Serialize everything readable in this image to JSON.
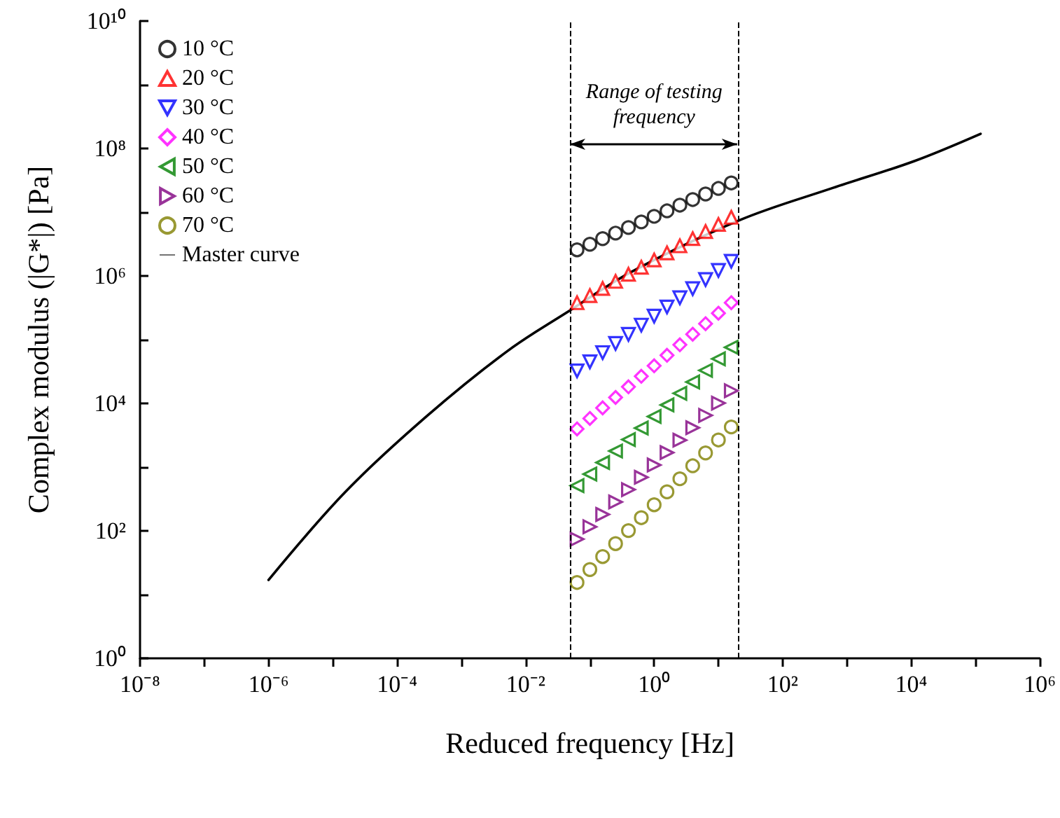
{
  "chart_data": {
    "type": "scatter",
    "xlabel": "Reduced frequency [Hz]",
    "ylabel": "Complex modulus (|G*|) [Pa]",
    "log": "xy",
    "grid": false,
    "legend": "top left",
    "xlim": [
      1e-08,
      1000000.0
    ],
    "ylim": [
      1,
      10000000000.0
    ],
    "xticks": [
      {
        "value": 1e-08,
        "label": "10⁻⁸"
      },
      {
        "value": 1e-07,
        "label": null
      },
      {
        "value": 1e-06,
        "label": "10⁻⁶"
      },
      {
        "value": 1e-05,
        "label": null
      },
      {
        "value": 0.0001,
        "label": "10⁻⁴"
      },
      {
        "value": 0.001,
        "label": null
      },
      {
        "value": 0.01,
        "label": "10⁻²"
      },
      {
        "value": 0.1,
        "label": null
      },
      {
        "value": 1,
        "label": "10⁰"
      },
      {
        "value": 10,
        "label": null
      },
      {
        "value": 100,
        "label": "10²"
      },
      {
        "value": 1000,
        "label": null
      },
      {
        "value": 10000.0,
        "label": "10⁴"
      },
      {
        "value": 100000.0,
        "label": null
      },
      {
        "value": 1000000.0,
        "label": "10⁶"
      }
    ],
    "yticks": [
      {
        "value": 1,
        "label": "10⁰"
      },
      {
        "value": 10,
        "label": null
      },
      {
        "value": 100,
        "label": "10²"
      },
      {
        "value": 1000,
        "label": null
      },
      {
        "value": 10000.0,
        "label": "10⁴"
      },
      {
        "value": 100000.0,
        "label": null
      },
      {
        "value": 1000000.0,
        "label": "10⁶"
      },
      {
        "value": 10000000.0,
        "label": null
      },
      {
        "value": 100000000.0,
        "label": "10⁸"
      },
      {
        "value": 1000000000.0,
        "label": null
      },
      {
        "value": 10000000000.0,
        "label": "10¹⁰"
      }
    ],
    "x": [
      0.0631,
      0.1,
      0.158,
      0.251,
      0.398,
      0.631,
      1,
      1.585,
      2.512,
      3.981,
      6.31,
      10,
      15.85
    ],
    "series": [
      {
        "name": "10 °C",
        "color": "#000000",
        "marker": "circle",
        "values": [
          2570000.0,
          3140000.0,
          3850000.0,
          4700000.0,
          5750000.0,
          7040000.0,
          8610000.0,
          10500000.0,
          12900000.0,
          15800000.0,
          19300000.0,
          23600000.0,
          28800000.0
        ]
      },
      {
        "name": "20 °C",
        "color": "#ff0000",
        "marker": "triangle",
        "values": [
          380000.0,
          492000.0,
          635000.0,
          822000.0,
          1060000.0,
          1370000.0,
          1780000.0,
          2300000.0,
          2970000.0,
          3850000.0,
          4980000.0,
          6430000.0,
          8320000.0
        ]
      },
      {
        "name": "30 °C",
        "color": "#0000ff",
        "marker": "triangle-down",
        "values": [
          32400.0,
          45000.0,
          62600.0,
          87100.0,
          121000.0,
          169000.0,
          234000.0,
          326000.0,
          454000.0,
          631000.0,
          877000.0,
          1220000.0,
          1700000.0
        ]
      },
      {
        "name": "40 °C",
        "color": "#ff00ff",
        "marker": "diamond",
        "values": [
          3980,
          5820,
          8510,
          12400.0,
          18200.0,
          26600.0,
          38900.0,
          56900.0,
          83200.0,
          122000.0,
          178000.0,
          260000.0,
          380000.0
        ]
      },
      {
        "name": "50 °C",
        "color": "#008000",
        "marker": "triangle-left",
        "values": [
          513,
          778,
          1180,
          1790,
          2710,
          4110,
          6240,
          9460,
          14400.0,
          21700.0,
          33000.0,
          50000.0,
          75900.0
        ]
      },
      {
        "name": "60 °C",
        "color": "#800080",
        "marker": "triangle-right",
        "values": [
          74.1,
          116,
          181,
          284,
          444,
          693,
          1080,
          1690,
          2650,
          4150,
          6490,
          10100.0,
          15800.0
        ]
      },
      {
        "name": "70 °C",
        "color": "#808000",
        "marker": "circle",
        "values": [
          15.5,
          24.7,
          39.5,
          63.1,
          101,
          161,
          257,
          410,
          656,
          1050,
          1670,
          2670,
          4270
        ]
      },
      {
        "name": "Master curve",
        "type": "line",
        "color": "#000000",
        "marker": "none",
        "line_style": "solid",
        "x": [
          1e-06,
          1.6e-05,
          0.00029,
          0.0052,
          0.049,
          0.45,
          22,
          600,
          11000.0,
          120000.0
        ],
        "values": [
          17,
          417,
          6310,
          66100.0,
          288000.0,
          1170000.0,
          7590000.0,
          24000000.0,
          63100000.0,
          170000000.0
        ]
      }
    ],
    "ref_lines": [
      {
        "axis": "x",
        "value": 0.05,
        "color": "#000000",
        "line_style": "dashed"
      },
      {
        "axis": "x",
        "value": 20,
        "color": "#000000",
        "line_style": "dashed"
      }
    ],
    "annotations": [
      "Range of testing frequency"
    ]
  }
}
